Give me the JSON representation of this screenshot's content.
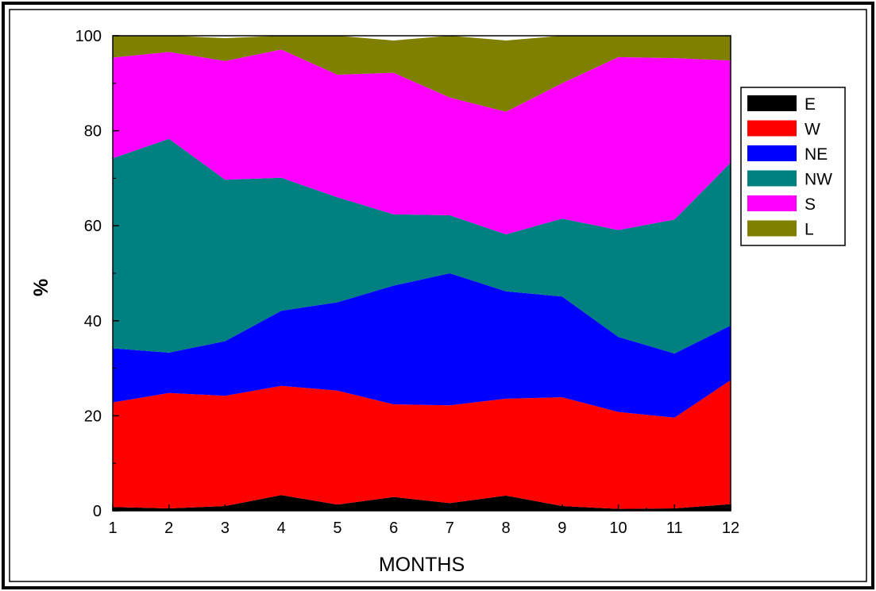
{
  "chart_data": {
    "type": "area",
    "stacked": true,
    "x": [
      1,
      2,
      3,
      4,
      5,
      6,
      7,
      8,
      9,
      10,
      11,
      12
    ],
    "xlabel": "MONTHS",
    "ylabel": "%",
    "xlim": [
      1,
      12
    ],
    "ylim": [
      0,
      100
    ],
    "xticks": [
      "1",
      "2",
      "3",
      "4",
      "5",
      "6",
      "7",
      "8",
      "9",
      "10",
      "11",
      "12"
    ],
    "yticks": [
      "0",
      "20",
      "40",
      "60",
      "80",
      "100"
    ],
    "grid": false,
    "legend_position": "right",
    "series": [
      {
        "name": "E",
        "color": "#000000",
        "values": [
          0.8,
          0.5,
          1.0,
          3.3,
          1.3,
          2.9,
          1.6,
          3.2,
          1.0,
          0.4,
          0.5,
          1.4
        ]
      },
      {
        "name": "W",
        "color": "#ff0000",
        "values": [
          22.0,
          24.3,
          23.2,
          23.0,
          24.0,
          19.5,
          20.6,
          20.4,
          22.9,
          20.4,
          19.1,
          26.1
        ]
      },
      {
        "name": "NE",
        "color": "#0000ff",
        "values": [
          11.4,
          8.5,
          11.5,
          15.8,
          18.6,
          25.0,
          27.8,
          22.6,
          21.2,
          15.8,
          13.5,
          11.5
        ]
      },
      {
        "name": "NW",
        "color": "#008080",
        "values": [
          40.0,
          45.0,
          34.0,
          28.0,
          22.1,
          15.0,
          12.2,
          12.0,
          16.4,
          22.5,
          28.2,
          34.3
        ]
      },
      {
        "name": "S",
        "color": "#ff00ff",
        "values": [
          21.2,
          18.3,
          25.0,
          27.0,
          25.8,
          29.8,
          24.8,
          25.8,
          28.5,
          36.4,
          34.0,
          21.5
        ]
      },
      {
        "name": "L",
        "color": "#808000",
        "values": [
          4.6,
          3.4,
          4.8,
          2.9,
          8.2,
          6.8,
          13.0,
          15.0,
          10.0,
          4.5,
          4.7,
          5.2
        ]
      }
    ]
  }
}
